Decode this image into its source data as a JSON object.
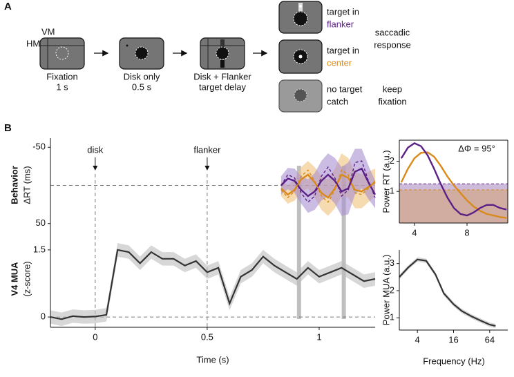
{
  "panel_a": {
    "letter": "A",
    "vm": "VM",
    "hm": "HM",
    "steps": [
      {
        "label": "Fixation",
        "duration": "1 s"
      },
      {
        "label": "Disk only",
        "duration": "0.5 s"
      },
      {
        "label": "Disk + Flanker",
        "duration": "target delay"
      }
    ],
    "outcomes": [
      {
        "line1": "target in",
        "line2": "flanker"
      },
      {
        "line1": "target in",
        "line2": "center"
      },
      {
        "line1": "no target",
        "line2": "catch"
      }
    ],
    "responses": [
      {
        "line1": "saccadic",
        "line2": "response"
      },
      {
        "line1": "keep",
        "line2": "fixation"
      }
    ]
  },
  "panel_b": {
    "letter": "B"
  },
  "chart_data": [
    {
      "type": "line",
      "ylabel_title": "Behavior",
      "ylabel": "ΔRT (ms)",
      "y_inverted": true,
      "xlim": [
        -0.2,
        1.25
      ],
      "ylim": [
        -62,
        62
      ],
      "yticks": [
        -50,
        50
      ],
      "hline": 0,
      "events": [
        {
          "x": 0,
          "label": "disk"
        },
        {
          "x": 0.5,
          "label": "flanker"
        }
      ],
      "highlight_x": [
        0.91,
        1.11
      ],
      "x": [
        0.83,
        0.86,
        0.89,
        0.92,
        0.95,
        0.98,
        1.01,
        1.04,
        1.07,
        1.1,
        1.13,
        1.16,
        1.19,
        1.22,
        1.25
      ],
      "series": [
        {
          "color": "#d98a1b",
          "band_color": "#f0c27b",
          "dashed": false,
          "values": [
            4,
            12,
            6,
            -8,
            -14,
            -4,
            10,
            16,
            4,
            -14,
            -10,
            6,
            8,
            2,
            -4
          ],
          "error": [
            10,
            12,
            14,
            16,
            18,
            20,
            22,
            24,
            26,
            28,
            26,
            24,
            22,
            20,
            18
          ]
        },
        {
          "color": "#5b1f86",
          "band_color": "#a98fd0",
          "dashed": false,
          "values": [
            0,
            -9,
            -6,
            6,
            14,
            8,
            -6,
            -14,
            -6,
            8,
            4,
            -18,
            -22,
            -4,
            12
          ],
          "error": [
            12,
            14,
            16,
            18,
            22,
            24,
            26,
            28,
            30,
            32,
            34,
            30,
            26,
            22,
            18
          ]
        },
        {
          "color": "#d98a1b",
          "dashed": true,
          "values": [
            6,
            16,
            8,
            -12,
            -20,
            -6,
            14,
            22,
            6,
            -20,
            -14,
            10,
            12,
            4,
            -6
          ]
        },
        {
          "color": "#5b1f86",
          "dashed": true,
          "values": [
            0,
            -14,
            -10,
            10,
            22,
            14,
            -12,
            -24,
            -10,
            14,
            6,
            -30,
            -32,
            -6,
            16
          ]
        }
      ]
    },
    {
      "type": "line",
      "ylabel_title": "V4 MUA",
      "ylabel": "(z-score)",
      "xlabel": "Time (s)",
      "xlim": [
        -0.2,
        1.25
      ],
      "ylim": [
        -0.23,
        1.93
      ],
      "xticks": [
        0,
        0.5,
        1
      ],
      "yticks": [
        0,
        1.5
      ],
      "hline": 0,
      "x": [
        -0.2,
        -0.15,
        -0.1,
        -0.05,
        0,
        0.05,
        0.1,
        0.15,
        0.2,
        0.25,
        0.3,
        0.35,
        0.4,
        0.45,
        0.5,
        0.55,
        0.6,
        0.65,
        0.7,
        0.75,
        0.8,
        0.85,
        0.9,
        0.95,
        1,
        1.05,
        1.1,
        1.15,
        1.2,
        1.25
      ],
      "values": [
        0,
        -0.05,
        0.02,
        0,
        0.01,
        0.05,
        1.5,
        1.45,
        1.2,
        1.45,
        1.3,
        1.3,
        1.15,
        1.25,
        1.0,
        1.1,
        0.3,
        0.9,
        1.05,
        1.35,
        1.15,
        1.0,
        0.85,
        1.1,
        0.9,
        1.0,
        1.1,
        0.95,
        0.8,
        0.85
      ],
      "error": 0.15,
      "color": "#333333",
      "band_color": "#bdbdbd"
    },
    {
      "type": "line",
      "ylabel": "Power RT (a.u.)",
      "annotation": "ΔΦ = 95°",
      "xlim": [
        2.85,
        11.1
      ],
      "ylim": [
        -0.05,
        2.7
      ],
      "xticks": [
        4,
        8
      ],
      "yticks": [
        1,
        2
      ],
      "thresholds": [
        {
          "value": 1.25,
          "color": "#5b1f86"
        },
        {
          "value": 1.05,
          "color": "#d98a1b"
        }
      ],
      "x": [
        3,
        3.5,
        4,
        4.5,
        5,
        5.5,
        6,
        6.5,
        7,
        7.5,
        8,
        8.5,
        9,
        9.5,
        10,
        10.5,
        11
      ],
      "series": [
        {
          "color": "#d98a1b",
          "dashed": false,
          "values": [
            1.3,
            1.75,
            2.1,
            2.28,
            2.3,
            2.15,
            1.85,
            1.5,
            1.2,
            0.95,
            0.7,
            0.5,
            0.35,
            0.25,
            0.2,
            0.15,
            0.12
          ]
        },
        {
          "color": "#5b1f86",
          "dashed": false,
          "values": [
            2.1,
            2.45,
            2.6,
            2.5,
            2.2,
            1.75,
            1.25,
            0.8,
            0.45,
            0.25,
            0.2,
            0.3,
            0.45,
            0.55,
            0.55,
            0.45,
            0.4
          ]
        }
      ]
    },
    {
      "type": "line",
      "ylabel": "Power MUA (a.u.)",
      "xlabel": "Frequency (Hz)",
      "log_x": true,
      "xlim": [
        2,
        128
      ],
      "ylim": [
        0.55,
        3.5
      ],
      "xticks": [
        4,
        16,
        64
      ],
      "yticks": [
        1,
        2,
        3
      ],
      "x": [
        2,
        2.8,
        4,
        5.6,
        8,
        11,
        16,
        22,
        32,
        45,
        64,
        80
      ],
      "values": [
        2.5,
        2.85,
        3.15,
        3.1,
        2.6,
        1.9,
        1.5,
        1.25,
        1.05,
        0.9,
        0.75,
        0.7
      ],
      "error": 0.08,
      "color": "#333333",
      "band_color": "#bdbdbd"
    }
  ]
}
